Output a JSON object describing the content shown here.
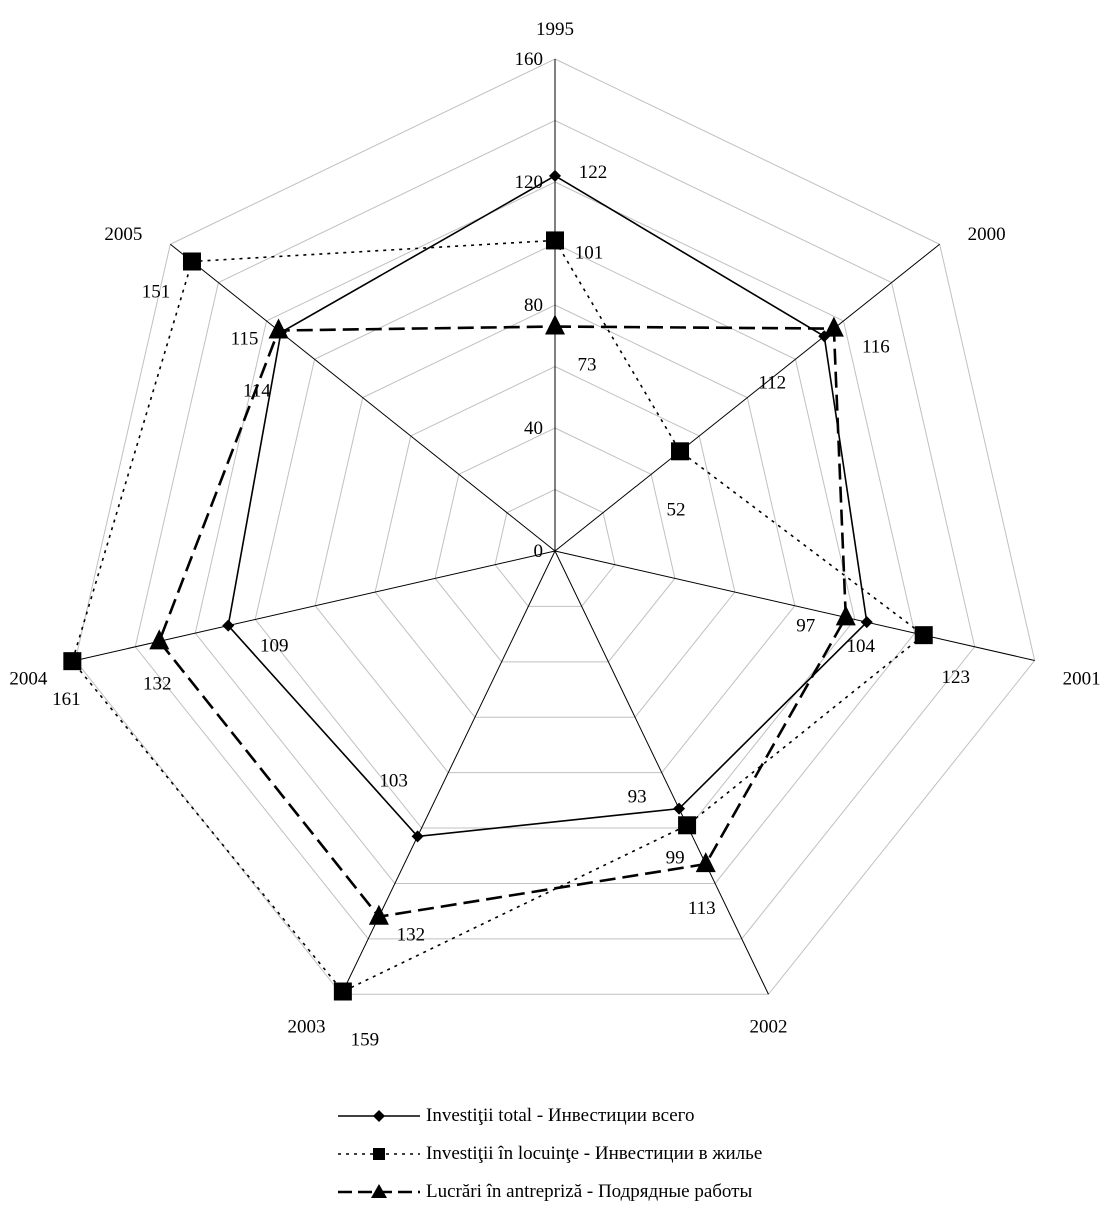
{
  "chart_data": {
    "type": "radar",
    "categories": [
      "1995",
      "2000",
      "2001",
      "2002",
      "2003",
      "2004",
      "2005"
    ],
    "scale": {
      "ticks": [
        0,
        40,
        80,
        120,
        160
      ],
      "min": 0,
      "max": 160
    },
    "series": [
      {
        "name": "Investiţii total - Инвестиции всего",
        "marker": "diamond",
        "line": "solid",
        "values": [
          122,
          112,
          104,
          93,
          103,
          109,
          114
        ]
      },
      {
        "name": "Investiţii în locuinţe - Инвестиции в жилье",
        "marker": "square",
        "line": "dotted",
        "values": [
          101,
          52,
          123,
          99,
          159,
          161,
          151
        ]
      },
      {
        "name": "Lucrări în antrepriză - Подрядные работы",
        "marker": "triangle",
        "line": "dashed",
        "values": [
          73,
          116,
          97,
          113,
          132,
          132,
          115
        ]
      }
    ],
    "grid": true,
    "legend_position": "bottom",
    "colors": {
      "line": "#000000",
      "grid": "#c0c0c0",
      "spoke": "#000000"
    }
  }
}
